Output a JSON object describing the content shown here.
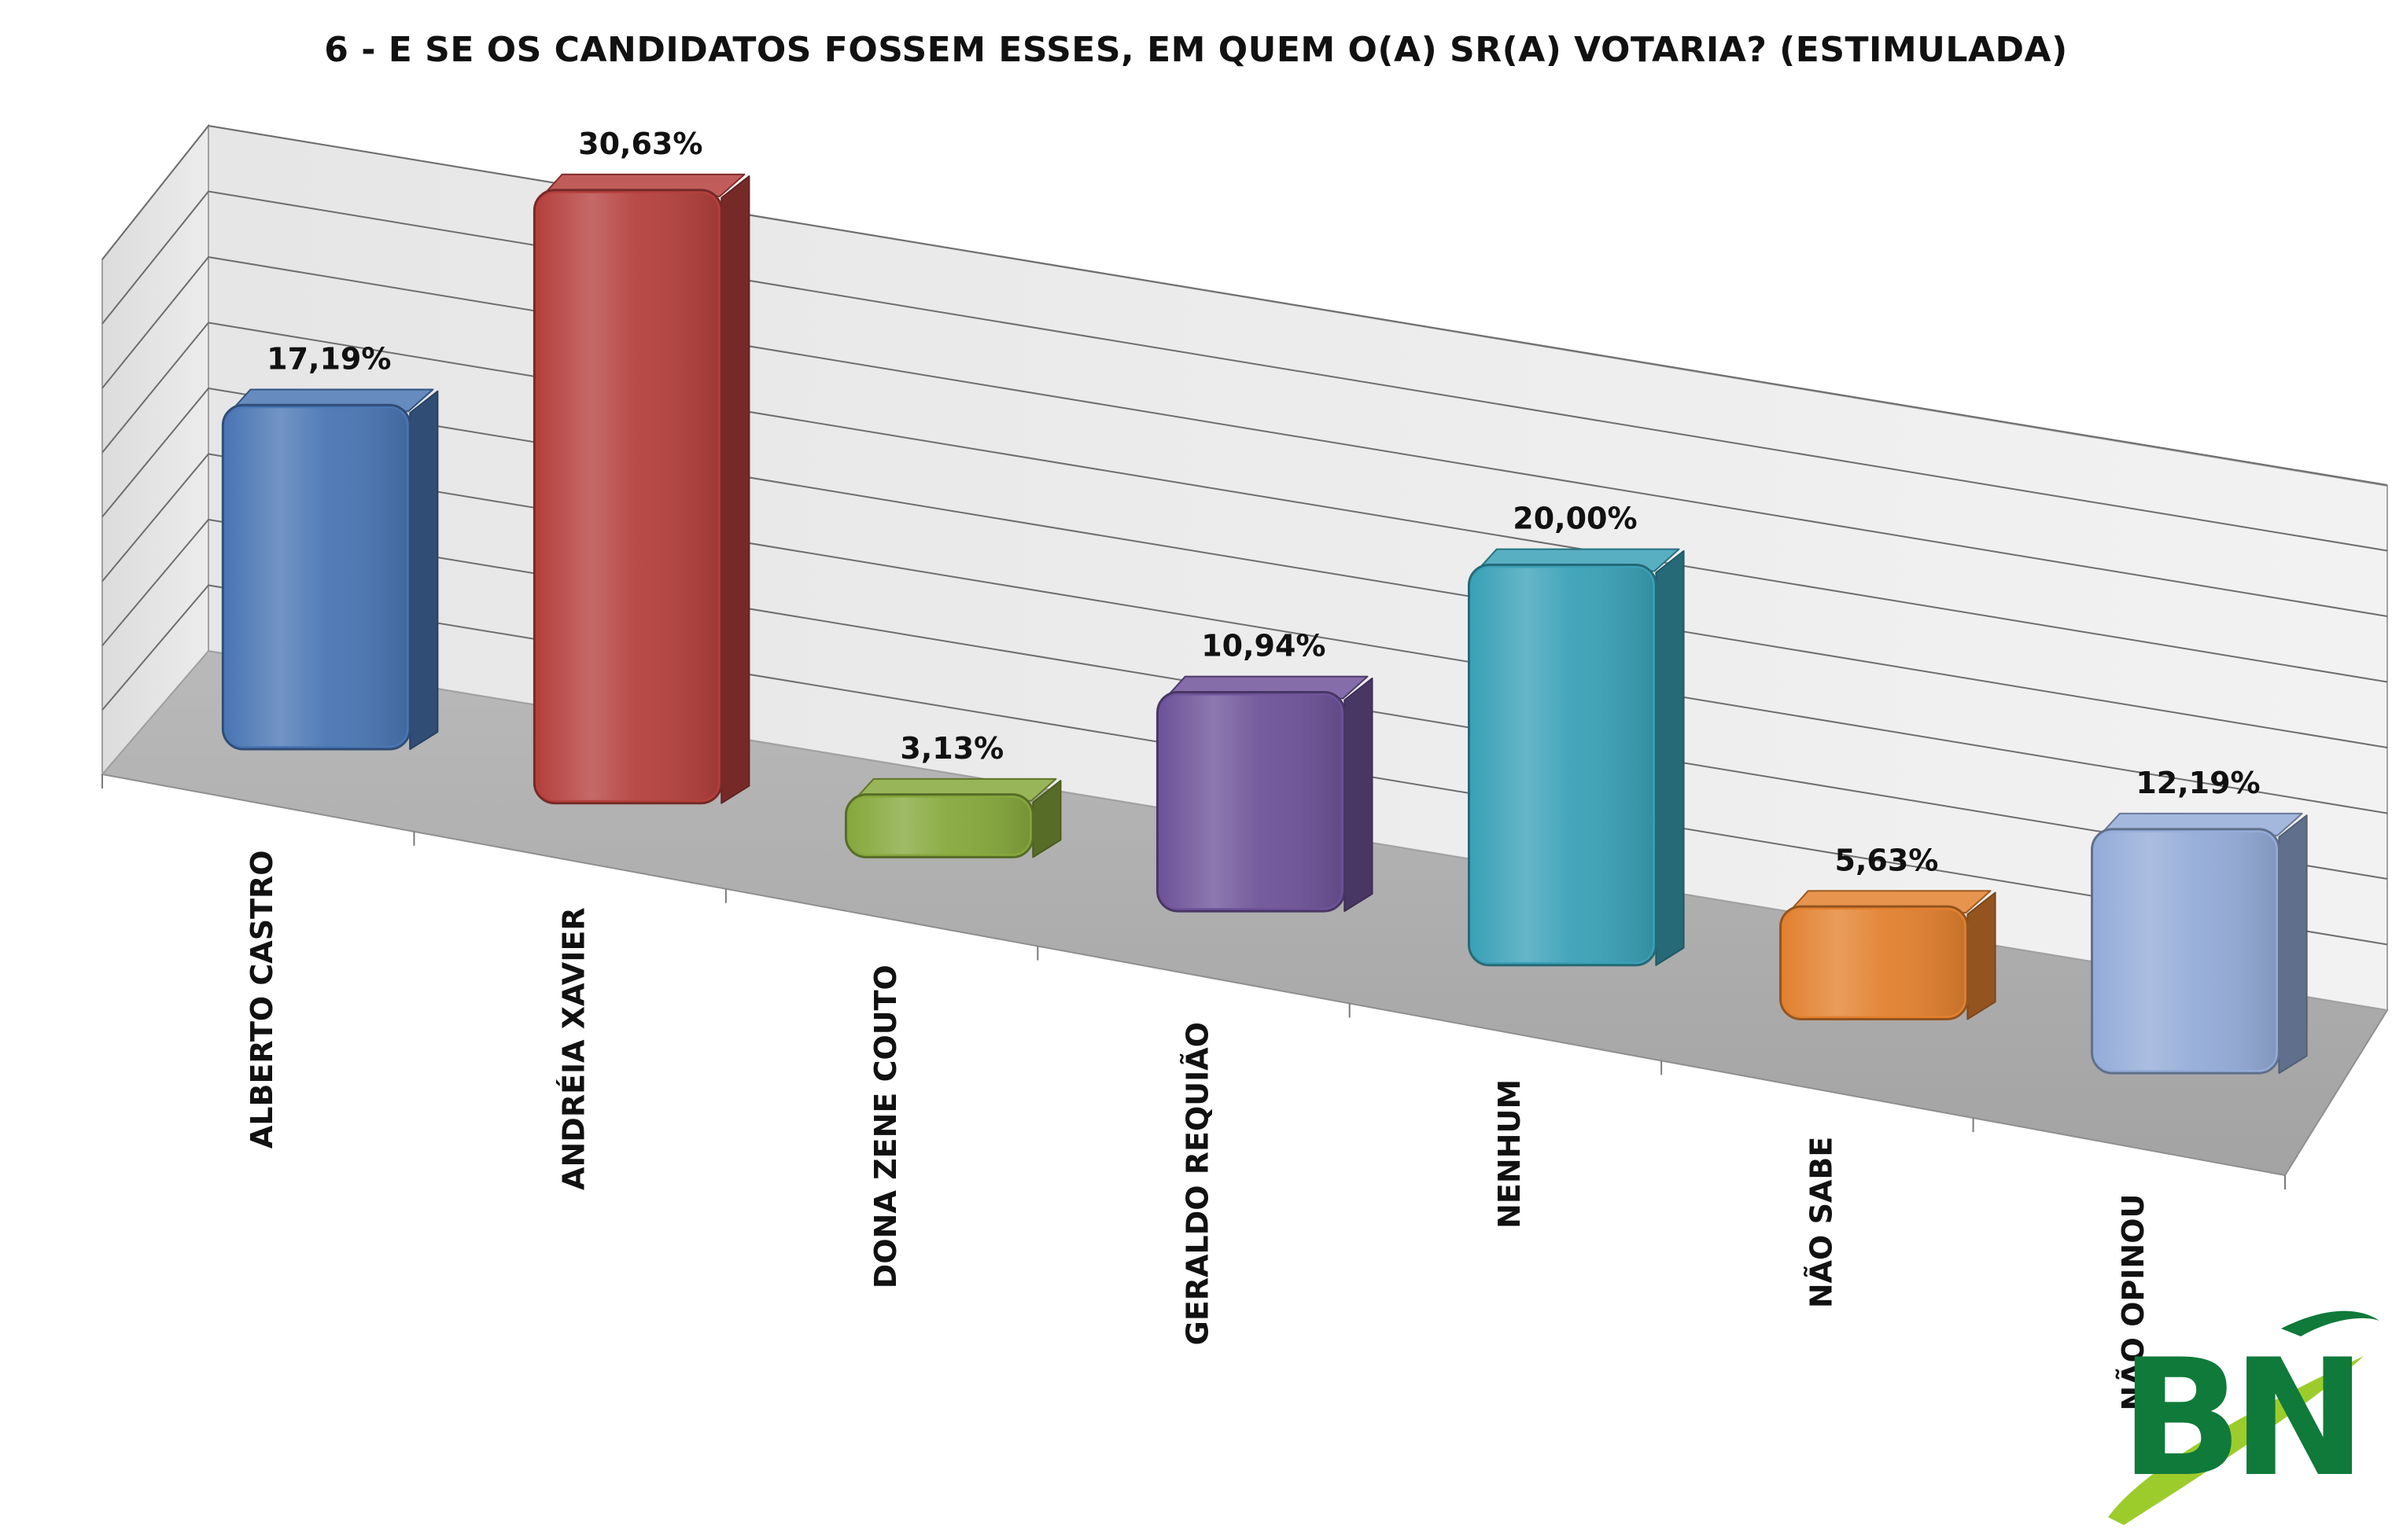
{
  "title": "6 - E SE OS CANDIDATOS FOSSEM ESSES, EM QUEM O(A) SR(A) VOTARIA? (ESTIMULADA)",
  "logo": {
    "text": "BN",
    "letter_color": "#0f7a3a",
    "swoosh_color": "#9ccc2c"
  },
  "chart_data": {
    "type": "bar",
    "title": "6 - E SE OS CANDIDATOS FOSSEM ESSES, EM QUEM O(A) SR(A) VOTARIA? (ESTIMULADA)",
    "categories": [
      "ALBERTO CASTRO",
      "ANDRÉIA XAVIER",
      "DONA ZENE COUTO",
      "GERALDO REQUIÃO",
      "NENHUM",
      "NÃO SABE",
      "NÃO OPINOU"
    ],
    "values": [
      17.19,
      30.63,
      3.13,
      10.94,
      20.0,
      5.63,
      12.19
    ],
    "value_labels": [
      "17,19%",
      "30,63%",
      "3,13%",
      "10,94%",
      "20,00%",
      "5,63%",
      "12,19%"
    ],
    "colors": [
      "#4a76b4",
      "#b5403d",
      "#86a83c",
      "#6e5399",
      "#3aa1b7",
      "#e2812f",
      "#94acd8"
    ],
    "ylim": [
      0,
      40
    ],
    "grid": true,
    "legend": "none",
    "xlabel": "",
    "ylabel": ""
  }
}
